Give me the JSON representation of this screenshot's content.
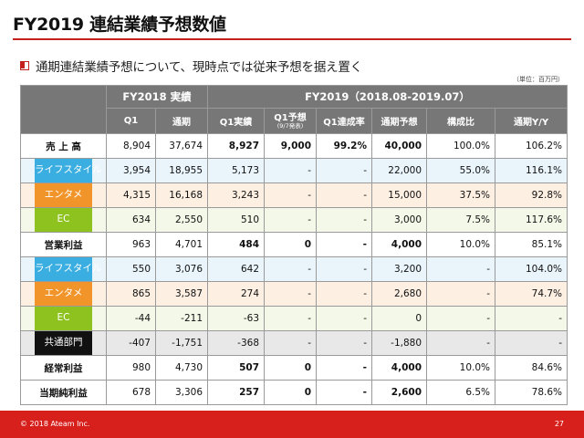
{
  "title": "FY2019 連結業績予想数値",
  "bullet": "通期連結業績予想について、現時点では従来予想を据え置く",
  "unit_note": "（単位：百万円）",
  "table": {
    "group_fy2018": "FY2018 実績",
    "group_fy2019": "FY2019（2018.08-2019.07）",
    "col_q1": "Q1",
    "col_full": "通期",
    "col_q1_actual": "Q1実績",
    "col_q1_forecast": "Q1予想",
    "col_q1_forecast_note": "(9/7発表)",
    "col_q1_rate": "Q1達成率",
    "col_full_forecast": "通期予想",
    "col_composition": "構成比",
    "col_yoy": "通期Y/Y",
    "rows": [
      {
        "label": "売 上 高",
        "v": [
          "8,904",
          "37,674",
          "8,927",
          "9,000",
          "99.2%",
          "40,000",
          "100.0%",
          "106.2%"
        ]
      },
      {
        "label": "ライフスタイル",
        "v": [
          "3,954",
          "18,955",
          "5,173",
          "-",
          "-",
          "22,000",
          "55.0%",
          "116.1%"
        ]
      },
      {
        "label": "エンタメ",
        "v": [
          "4,315",
          "16,168",
          "3,243",
          "-",
          "-",
          "15,000",
          "37.5%",
          "92.8%"
        ]
      },
      {
        "label": "EC",
        "v": [
          "634",
          "2,550",
          "510",
          "-",
          "-",
          "3,000",
          "7.5%",
          "117.6%"
        ]
      },
      {
        "label": "営業利益",
        "v": [
          "963",
          "4,701",
          "484",
          "0",
          "-",
          "4,000",
          "10.0%",
          "85.1%"
        ]
      },
      {
        "label": "ライフスタイル",
        "v": [
          "550",
          "3,076",
          "642",
          "-",
          "-",
          "3,200",
          "-",
          "104.0%"
        ]
      },
      {
        "label": "エンタメ",
        "v": [
          "865",
          "3,587",
          "274",
          "-",
          "-",
          "2,680",
          "-",
          "74.7%"
        ]
      },
      {
        "label": "EC",
        "v": [
          "-44",
          "-211",
          "-63",
          "-",
          "-",
          "0",
          "-",
          "-"
        ]
      },
      {
        "label": "共通部門",
        "v": [
          "-407",
          "-1,751",
          "-368",
          "-",
          "-",
          "-1,880",
          "-",
          "-"
        ]
      },
      {
        "label": "経常利益",
        "v": [
          "980",
          "4,730",
          "507",
          "0",
          "-",
          "4,000",
          "10.0%",
          "84.6%"
        ]
      },
      {
        "label": "当期純利益",
        "v": [
          "678",
          "3,306",
          "257",
          "0",
          "-",
          "2,600",
          "6.5%",
          "78.6%"
        ]
      }
    ]
  },
  "footer": {
    "copyright": "© 2018 Ateam Inc.",
    "page_number": "27"
  },
  "colors": {
    "accent_red": "#d71f1c",
    "header_gray": "#777777",
    "lifestyle_blue": "#3aaee0",
    "entertainment_orange": "#f1952b",
    "ec_green": "#8dc21f",
    "common_black": "#111111"
  }
}
